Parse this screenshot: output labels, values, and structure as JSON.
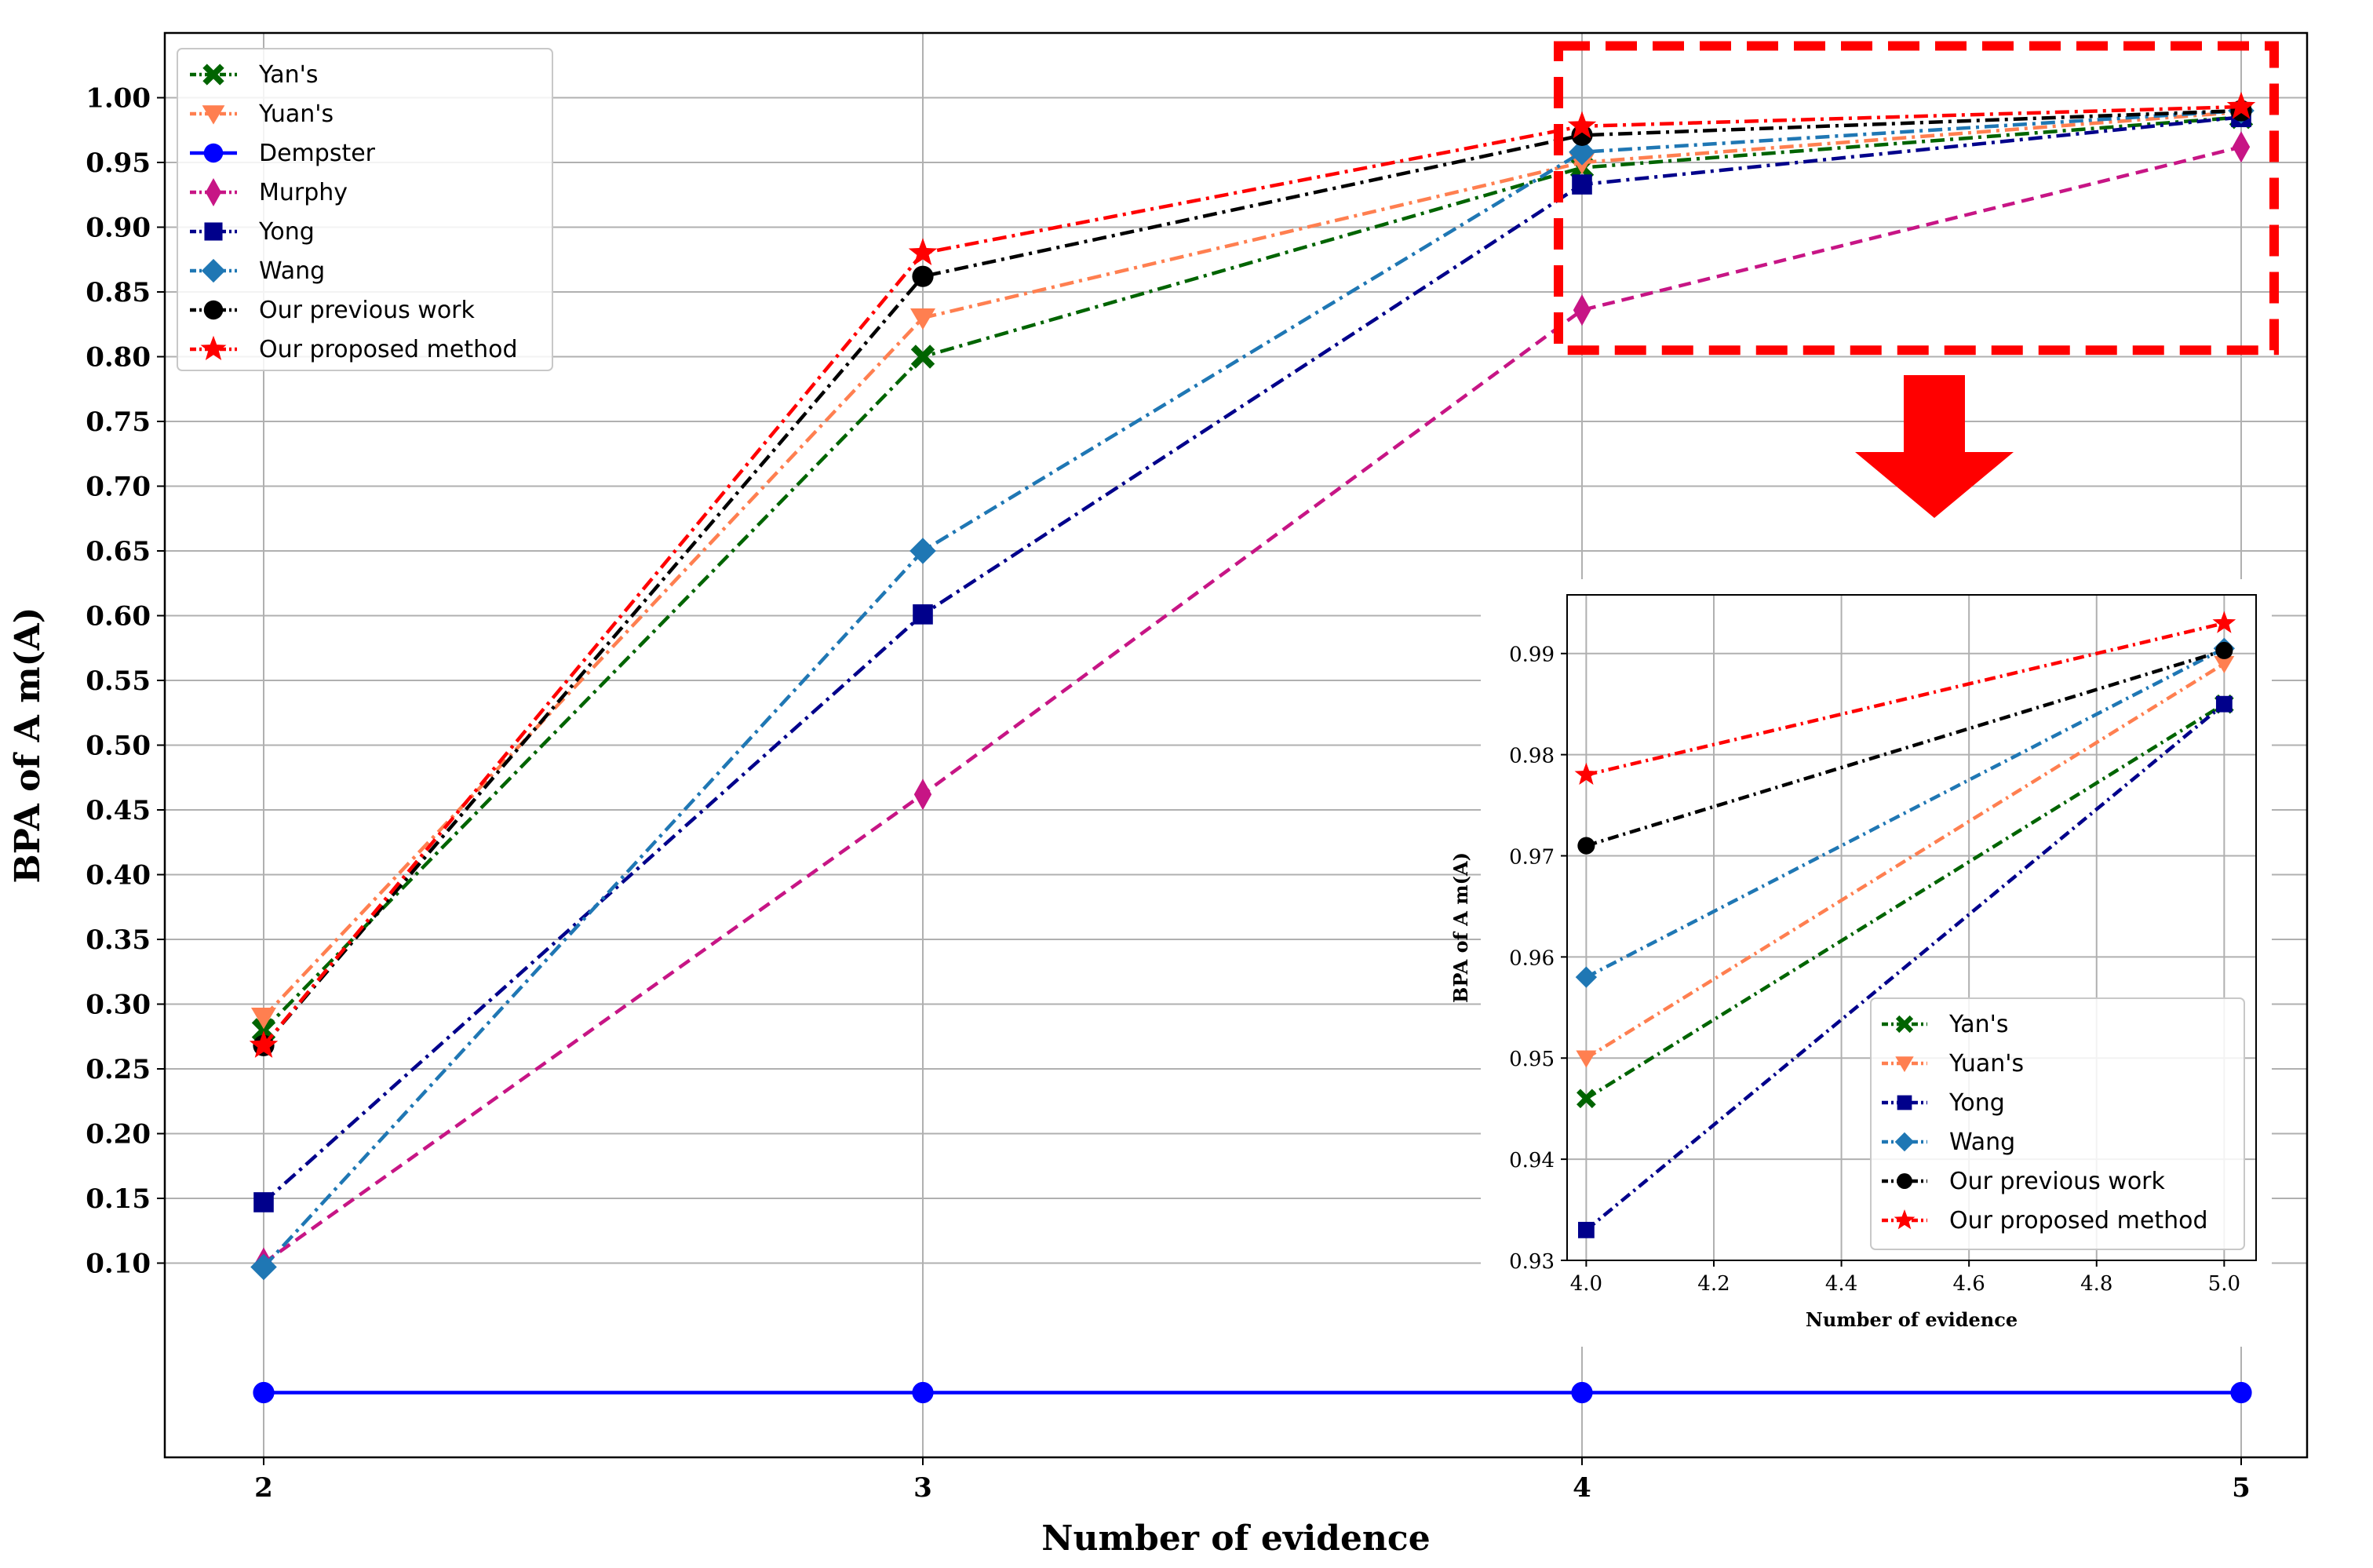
{
  "chart_data": [
    {
      "type": "line",
      "role": "main",
      "title": "",
      "xlabel": "Number of evidence",
      "ylabel": "BPA of A m(A)",
      "x": [
        2,
        3,
        4,
        5
      ],
      "x_ticks": [
        "2",
        "3",
        "4",
        "5"
      ],
      "xlim": [
        1.85,
        5.1
      ],
      "ylim": [
        -0.05,
        1.05
      ],
      "y_ticks": [
        "0.10",
        "0.15",
        "0.20",
        "0.25",
        "0.30",
        "0.35",
        "0.40",
        "0.45",
        "0.50",
        "0.55",
        "0.60",
        "0.65",
        "0.70",
        "0.75",
        "0.80",
        "0.85",
        "0.90",
        "0.95",
        "1.00"
      ],
      "grid": true,
      "legend_position": "top-left",
      "series": [
        {
          "name": "Yan's",
          "values": [
            0.28,
            0.8,
            0.946,
            0.985
          ],
          "color": "#006400",
          "dash": "dashdot",
          "marker": "X"
        },
        {
          "name": "Yuan's",
          "values": [
            0.29,
            0.83,
            0.95,
            0.989
          ],
          "color": "#ff7f50",
          "dash": "dashdot",
          "marker": "v"
        },
        {
          "name": "Dempster",
          "values": [
            0.0,
            0.0,
            0.0,
            0.0
          ],
          "color": "#0000ff",
          "dash": "solid",
          "marker": "o"
        },
        {
          "name": "Murphy",
          "values": [
            0.1,
            0.462,
            0.836,
            0.962
          ],
          "color": "#c71585",
          "dash": "dashed",
          "marker": "d"
        },
        {
          "name": "Yong",
          "values": [
            0.147,
            0.601,
            0.933,
            0.985
          ],
          "color": "#00008b",
          "dash": "dashdot",
          "marker": "s"
        },
        {
          "name": "Wang",
          "values": [
            0.097,
            0.65,
            0.958,
            0.99
          ],
          "color": "#1f77b4",
          "dash": "dashdot",
          "marker": "D"
        },
        {
          "name": "Our previous work",
          "values": [
            0.268,
            0.862,
            0.971,
            0.99
          ],
          "color": "#000000",
          "dash": "dashdot",
          "marker": "o"
        },
        {
          "name": "Our proposed method",
          "values": [
            0.268,
            0.88,
            0.978,
            0.993
          ],
          "color": "#ff0000",
          "dash": "dashdot",
          "marker": "*"
        }
      ],
      "annotation": {
        "zoom_box_range_x": [
          4,
          5
        ],
        "zoom_box_range_y": [
          0.805,
          1.04
        ],
        "style": "red dashed box with arrow"
      }
    },
    {
      "type": "line",
      "role": "inset",
      "title": "",
      "xlabel": "Number of evidence",
      "ylabel": "BPA of A m(A)",
      "x": [
        4.0,
        5.0
      ],
      "x_ticks": [
        "4.0",
        "4.2",
        "4.4",
        "4.6",
        "4.8",
        "5.0"
      ],
      "y_ticks": [
        "0.93",
        "0.94",
        "0.95",
        "0.96",
        "0.97",
        "0.98",
        "0.99"
      ],
      "xlim": [
        3.97,
        5.05
      ],
      "ylim": [
        0.93,
        0.9958
      ],
      "grid": true,
      "legend_position": "bottom-right",
      "series": [
        {
          "name": "Yan's",
          "values": [
            0.946,
            0.985
          ],
          "color": "#006400",
          "dash": "dashdot",
          "marker": "X"
        },
        {
          "name": "Yuan's",
          "values": [
            0.95,
            0.989
          ],
          "color": "#ff7f50",
          "dash": "dashdot",
          "marker": "v"
        },
        {
          "name": "Yong",
          "values": [
            0.933,
            0.985
          ],
          "color": "#00008b",
          "dash": "dashdot",
          "marker": "s"
        },
        {
          "name": "Wang",
          "values": [
            0.958,
            0.9905
          ],
          "color": "#1f77b4",
          "dash": "dashdot",
          "marker": "D"
        },
        {
          "name": "Our previous work",
          "values": [
            0.971,
            0.9903
          ],
          "color": "#000000",
          "dash": "dashdot",
          "marker": "o"
        },
        {
          "name": "Our proposed method",
          "values": [
            0.978,
            0.993
          ],
          "color": "#ff0000",
          "dash": "dashdot",
          "marker": "*"
        }
      ]
    }
  ]
}
